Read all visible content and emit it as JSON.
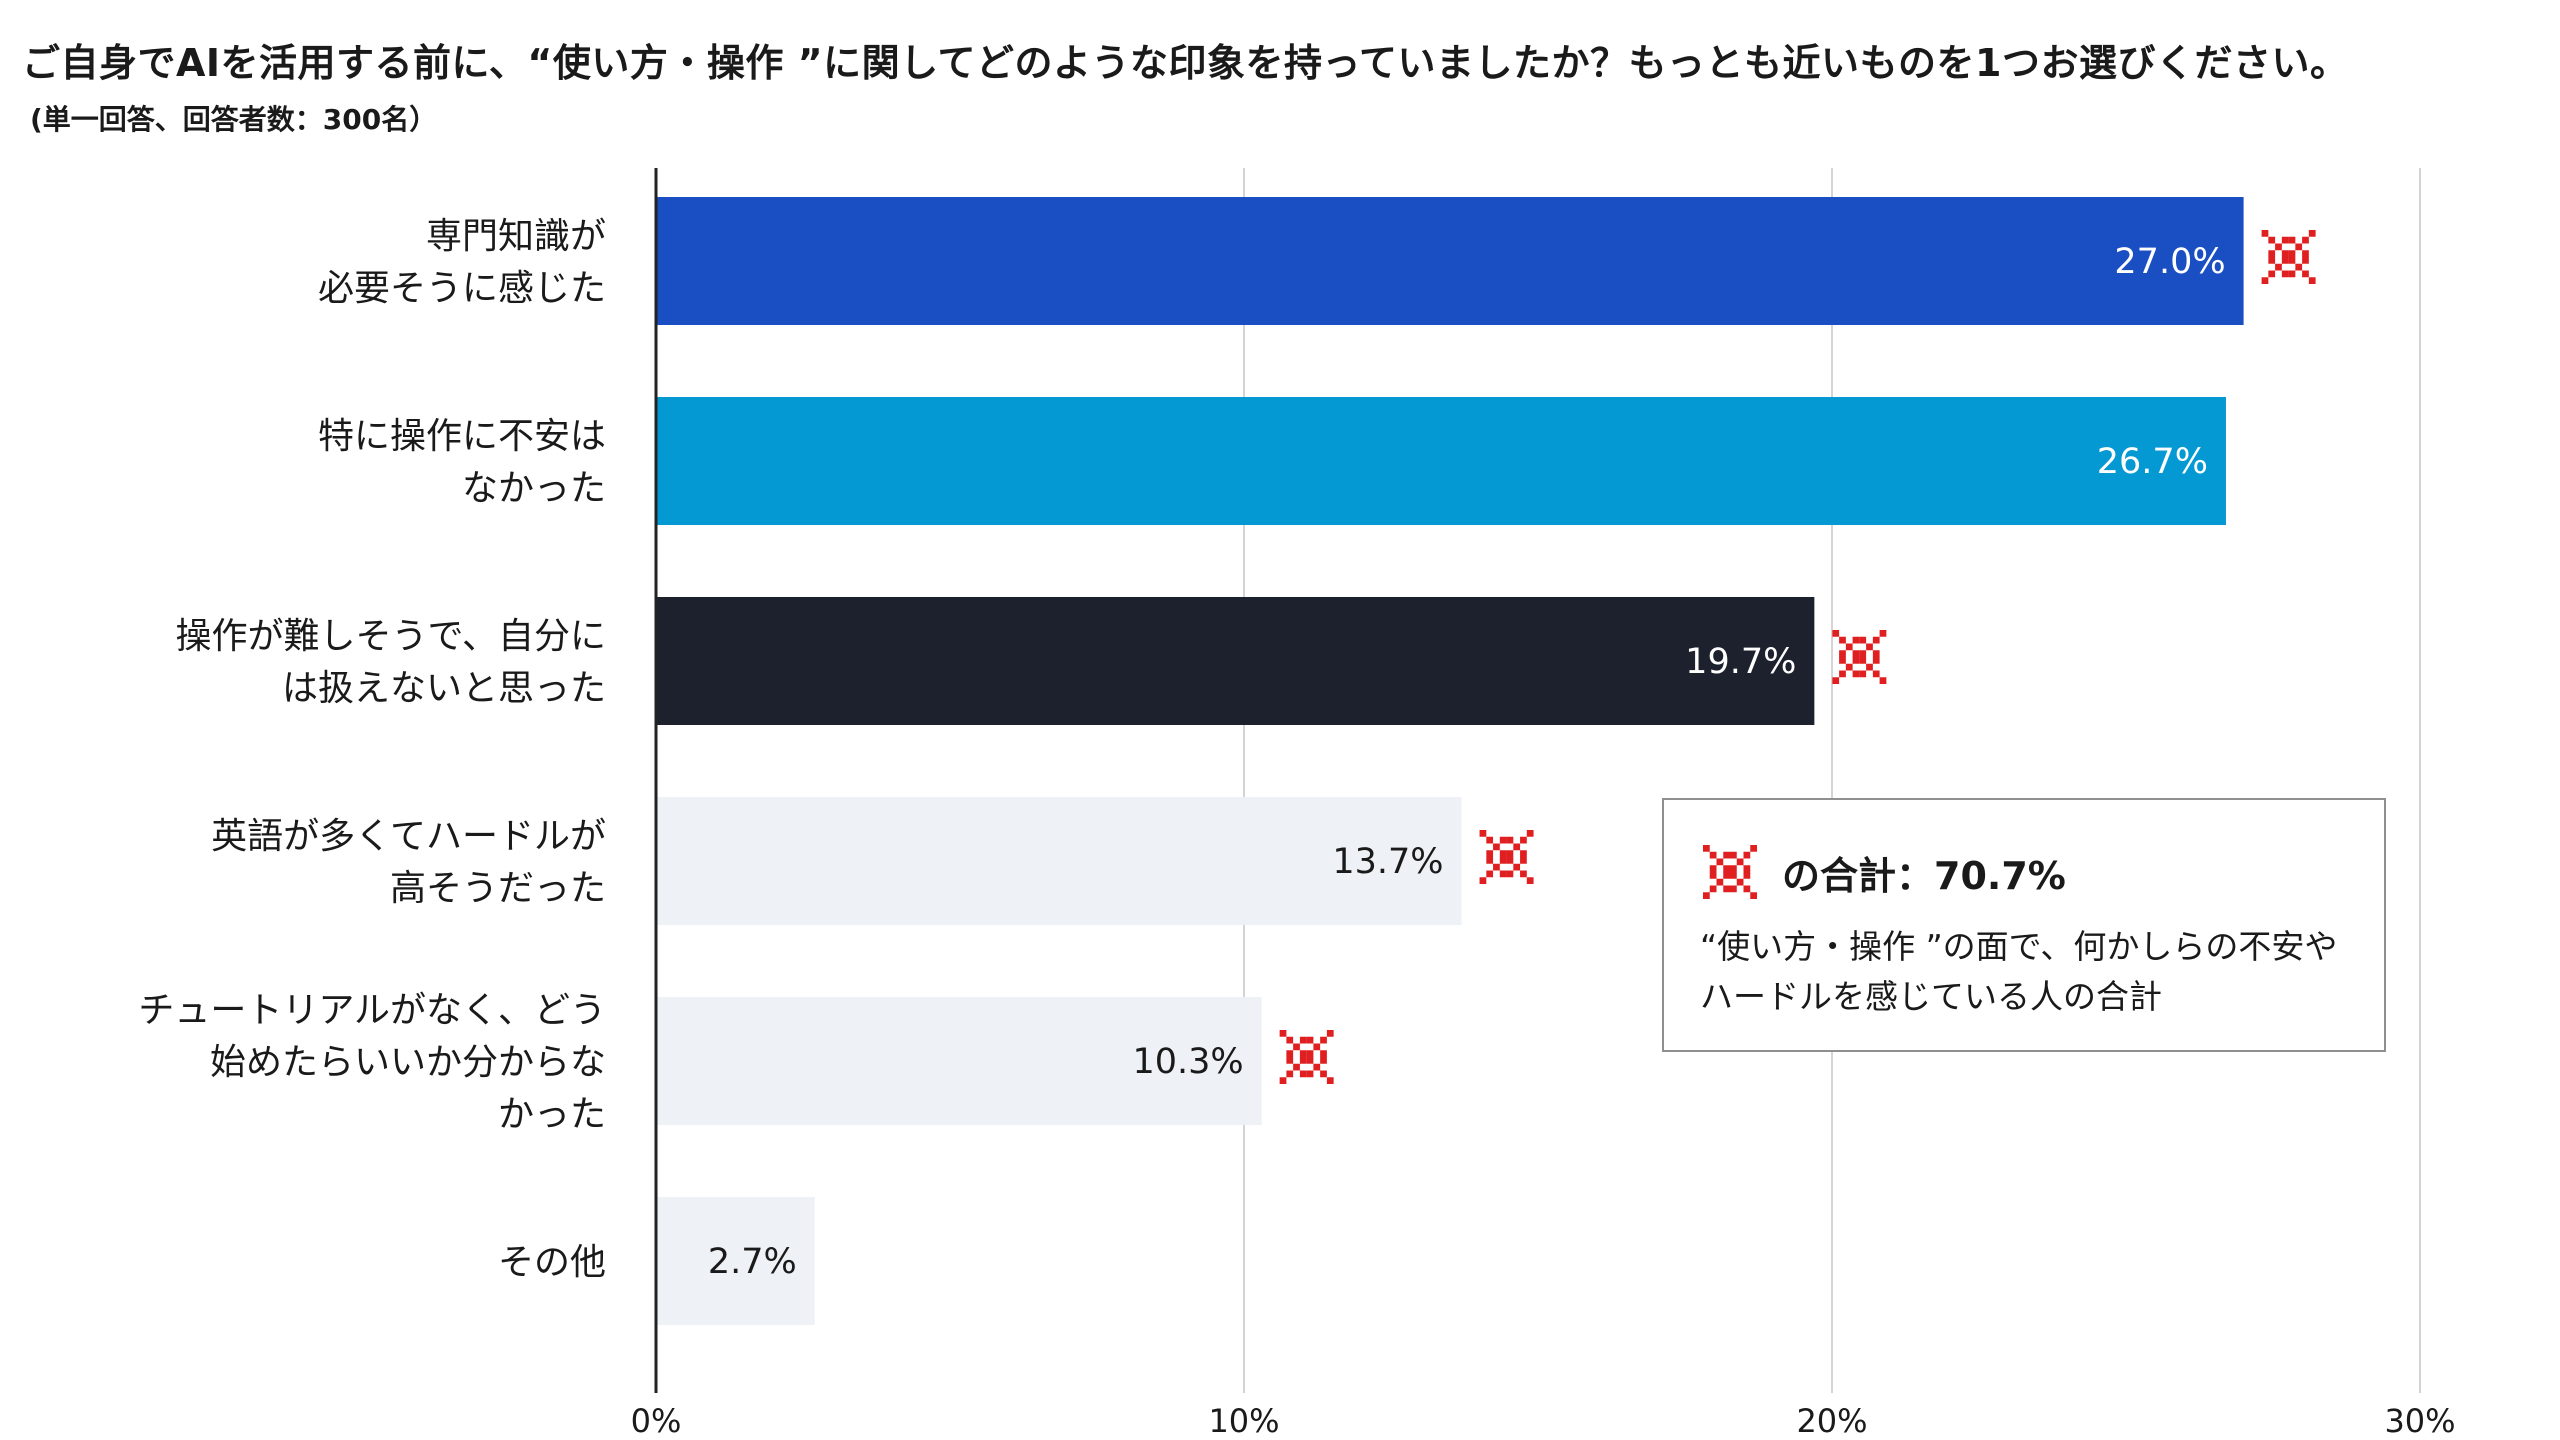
{
  "title": "ご自身でAIを活用する前に、“使い方・操作 ”に関してどのような印象を持っていましたか？もっとも近いものを1つお選びください。",
  "subtitle": "(単一回答、回答者数：300名）",
  "chart_data": {
    "type": "bar",
    "orientation": "horizontal",
    "categories": [
      "専門知識が\n必要そうに感じた",
      "特に操作に不安は\nなかった",
      "操作が難しそうで、自分に\nは扱えないと思った",
      "英語が多くてハードルが\n高そうだった",
      "チュートリアルがなく、どう\n始めたらいいか分からな\nかった",
      "その他"
    ],
    "values": [
      27.0,
      26.7,
      19.7,
      13.7,
      10.3,
      2.7
    ],
    "value_labels": [
      "27.0%",
      "26.7%",
      "19.7%",
      "13.7%",
      "10.3%",
      "2.7%"
    ],
    "bar_colors": [
      "#1a4fc4",
      "#0599d4",
      "#1d212d",
      "#eef1f5",
      "#eef1f5",
      "#eef1f5"
    ],
    "value_label_colors": [
      "#ffffff",
      "#ffffff",
      "#ffffff",
      "#1a1a1a",
      "#1a1a1a",
      "#1a1a1a"
    ],
    "marked": [
      true,
      false,
      true,
      true,
      true,
      false
    ],
    "mark_symbol": "※",
    "mark_color": "#e02020",
    "xlim": [
      0,
      30
    ],
    "xticks": [
      0,
      10,
      20,
      30
    ],
    "xtick_labels": [
      "0%",
      "10%",
      "20%",
      "30%"
    ],
    "grid": true,
    "xlabel": "",
    "ylabel": ""
  },
  "legend_box": {
    "mark": "※",
    "heading": "の合計：70.7%",
    "description": "“使い方・操作 ”の面で、何かしらの不安やハードルを感じている人の合計"
  }
}
